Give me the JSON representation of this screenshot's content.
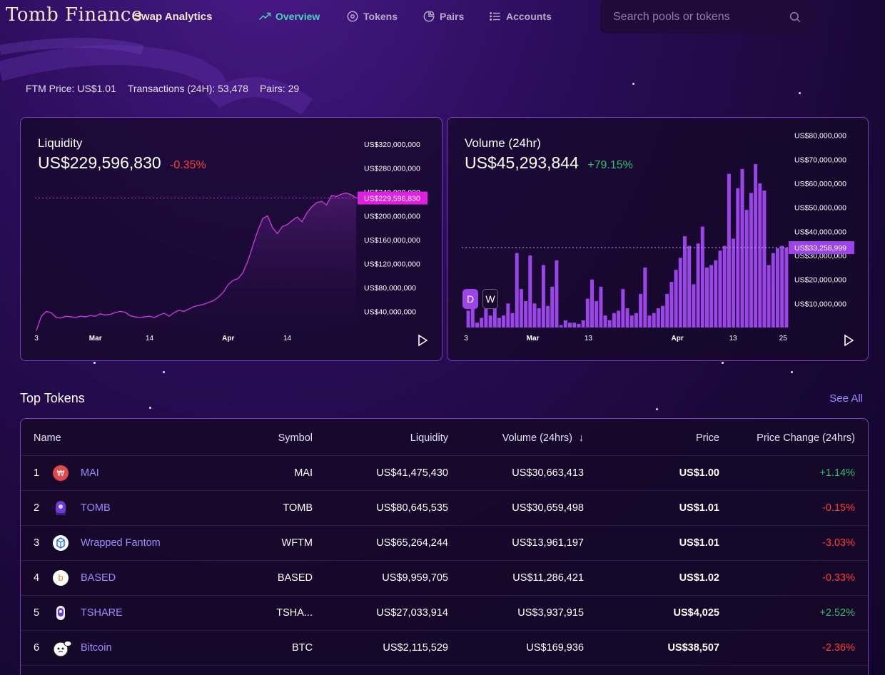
{
  "app": {
    "logo": "Tomb Finance",
    "subtitle": "Swap Analytics"
  },
  "nav": [
    {
      "label": "Overview",
      "icon": "trending-up-icon",
      "active": true
    },
    {
      "label": "Tokens",
      "icon": "target-icon",
      "active": false
    },
    {
      "label": "Pairs",
      "icon": "pie-icon",
      "active": false
    },
    {
      "label": "Accounts",
      "icon": "list-icon",
      "active": false
    }
  ],
  "search": {
    "placeholder": "Search pools or tokens"
  },
  "stats": {
    "ftm_price": "FTM Price: US$1.01",
    "transactions": "Transactions (24H): 53,478",
    "pairs": "Pairs: 29"
  },
  "liquidity": {
    "title": "Liquidity",
    "value": "US$229,596,830",
    "change": "-0.35%",
    "current_label": "US$229,596,830"
  },
  "volume": {
    "title": "Volume (24hr)",
    "value": "US$45,293,844",
    "change": "+79.15%",
    "current_label": "US$33,258,999",
    "toggle_d": "D",
    "toggle_w": "W"
  },
  "chart_data": [
    {
      "type": "area",
      "title": "Liquidity",
      "ylim": [
        0,
        340000000
      ],
      "y_ticks": [
        "US$320,000,000",
        "US$280,000,000",
        "US$240,000,000",
        "US$200,000,000",
        "US$160,000,000",
        "US$120,000,000",
        "US$80,000,000",
        "US$40,000,000"
      ],
      "y_tick_values": [
        320000000,
        280000000,
        240000000,
        200000000,
        160000000,
        120000000,
        80000000,
        40000000
      ],
      "x_ticks": [
        {
          "label": "3",
          "i": 0
        },
        {
          "label": "Mar",
          "i": 12
        },
        {
          "label": "14",
          "i": 23
        },
        {
          "label": "Apr",
          "i": 39
        },
        {
          "label": "14",
          "i": 51
        }
      ],
      "values": [
        8000000,
        32000000,
        40000000,
        38000000,
        30000000,
        29000000,
        32000000,
        31000000,
        30000000,
        32000000,
        31000000,
        33000000,
        32000000,
        36000000,
        34000000,
        35000000,
        38000000,
        40000000,
        39000000,
        33000000,
        31000000,
        30000000,
        31000000,
        32000000,
        30000000,
        34000000,
        37000000,
        32000000,
        38000000,
        42000000,
        40000000,
        44000000,
        48000000,
        50000000,
        52000000,
        55000000,
        58000000,
        64000000,
        72000000,
        85000000,
        92000000,
        95000000,
        105000000,
        125000000,
        150000000,
        175000000,
        195000000,
        200000000,
        180000000,
        170000000,
        182000000,
        185000000,
        192000000,
        198000000,
        190000000,
        205000000,
        215000000,
        222000000,
        224000000,
        218000000,
        234000000,
        232000000,
        236000000,
        238000000,
        235000000,
        229596830
      ]
    },
    {
      "type": "bar",
      "title": "Volume (24hr)",
      "ylim": [
        0,
        82000000
      ],
      "y_ticks": [
        "US$80,000,000",
        "US$70,000,000",
        "US$60,000,000",
        "US$50,000,000",
        "US$40,000,000",
        "US$30,000,000",
        "US$20,000,000",
        "US$10,000,000"
      ],
      "y_tick_values": [
        80000000,
        70000000,
        60000000,
        50000000,
        40000000,
        30000000,
        20000000,
        10000000
      ],
      "x_ticks": [
        {
          "label": "3",
          "i": 0
        },
        {
          "label": "Mar",
          "i": 12
        },
        {
          "label": "13",
          "i": 22
        },
        {
          "label": "Apr",
          "i": 38
        },
        {
          "label": "13",
          "i": 48
        },
        {
          "label": "25",
          "i": 57
        }
      ],
      "values": [
        7000000,
        13000000,
        2000000,
        4000000,
        12000000,
        5000000,
        14000000,
        4000000,
        5000000,
        10000000,
        6000000,
        31000000,
        16000000,
        11000000,
        30000000,
        10000000,
        8000000,
        26000000,
        9000000,
        17000000,
        28000000,
        1000000,
        3000000,
        2000000,
        2000000,
        1500000,
        3000000,
        12000000,
        20000000,
        11000000,
        17000000,
        5000000,
        3000000,
        6000000,
        7000000,
        16000000,
        8000000,
        5000000,
        6000000,
        14000000,
        25000000,
        5000000,
        6000000,
        8000000,
        9000000,
        14000000,
        19000000,
        24000000,
        29000000,
        38000000,
        34000000,
        18000000,
        35000000,
        42000000,
        25000000,
        26000000,
        28000000,
        32000000,
        34000000,
        64000000,
        37000000,
        58000000,
        66000000,
        49000000,
        56000000,
        68000000,
        60000000,
        57000000,
        26000000,
        31000000,
        33000000,
        34000000,
        33258999
      ],
      "series_note": ""
    }
  ],
  "top_tokens": {
    "title": "Top Tokens",
    "see_all": "See All",
    "headers": {
      "name": "Name",
      "symbol": "Symbol",
      "liquidity": "Liquidity",
      "volume": "Volume (24hrs)",
      "price": "Price",
      "change": "Price Change (24hrs)"
    },
    "rows": [
      {
        "idx": "1",
        "icon": "mai-token-icon",
        "name": "MAI",
        "symbol": "MAI",
        "liquidity": "US$41,475,430",
        "volume": "US$30,663,413",
        "price": "US$1.00",
        "change": "+1.14%",
        "positive": true
      },
      {
        "idx": "2",
        "icon": "tomb-token-icon",
        "name": "TOMB",
        "symbol": "TOMB",
        "liquidity": "US$80,645,535",
        "volume": "US$30,659,498",
        "price": "US$1.01",
        "change": "-0.15%",
        "positive": false
      },
      {
        "idx": "3",
        "icon": "wftm-token-icon",
        "name": "Wrapped Fantom",
        "symbol": "WFTM",
        "liquidity": "US$65,264,244",
        "volume": "US$13,961,197",
        "price": "US$1.01",
        "change": "-3.03%",
        "positive": false
      },
      {
        "idx": "4",
        "icon": "based-token-icon",
        "name": "BASED",
        "symbol": "BASED",
        "liquidity": "US$9,959,705",
        "volume": "US$11,286,421",
        "price": "US$1.02",
        "change": "-0.33%",
        "positive": false
      },
      {
        "idx": "5",
        "icon": "tshare-token-icon",
        "name": "TSHARE",
        "symbol": "TSHA...",
        "liquidity": "US$27,033,914",
        "volume": "US$3,937,915",
        "price": "US$4,025",
        "change": "+2.52%",
        "positive": true
      },
      {
        "idx": "6",
        "icon": "bitcoin-token-icon",
        "name": "Bitcoin",
        "symbol": "BTC",
        "liquidity": "US$2,115,529",
        "volume": "US$169,936",
        "price": "US$38,507",
        "change": "-2.36%",
        "positive": false
      }
    ]
  },
  "colors": {
    "accent": "#9a8dff",
    "magenta": "#e020e0",
    "bar": "#9b45e8",
    "pos": "#2bc06a",
    "neg": "#ff3b3b",
    "nav_active": "#4ad3c0"
  }
}
